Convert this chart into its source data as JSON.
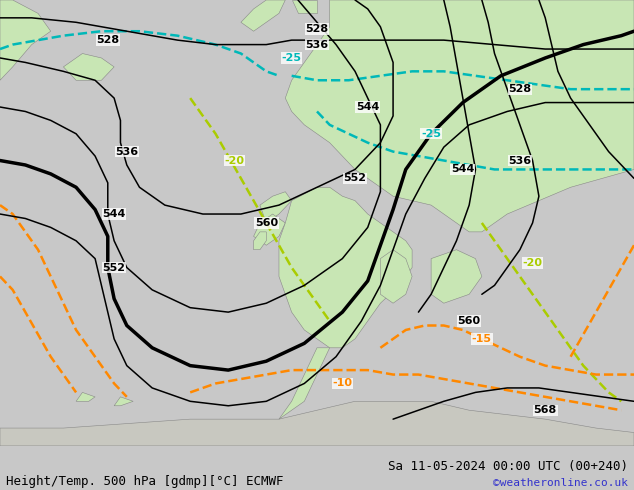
{
  "title_left": "Height/Temp. 500 hPa [gdmp][°C] ECMWF",
  "title_right": "Sa 11-05-2024 00:00 UTC (00+240)",
  "credit": "©weatheronline.co.uk",
  "bg_ocean": "#c8c8c8",
  "land_color": "#c8e6b4",
  "land_border": "#888888",
  "contour_black": "#000000",
  "contour_teal": "#00b8b8",
  "contour_orange": "#ff8800",
  "contour_ygreen": "#aacc00",
  "title_fontsize": 9,
  "credit_fontsize": 8,
  "figsize": [
    6.34,
    4.9
  ],
  "dpi": 100
}
